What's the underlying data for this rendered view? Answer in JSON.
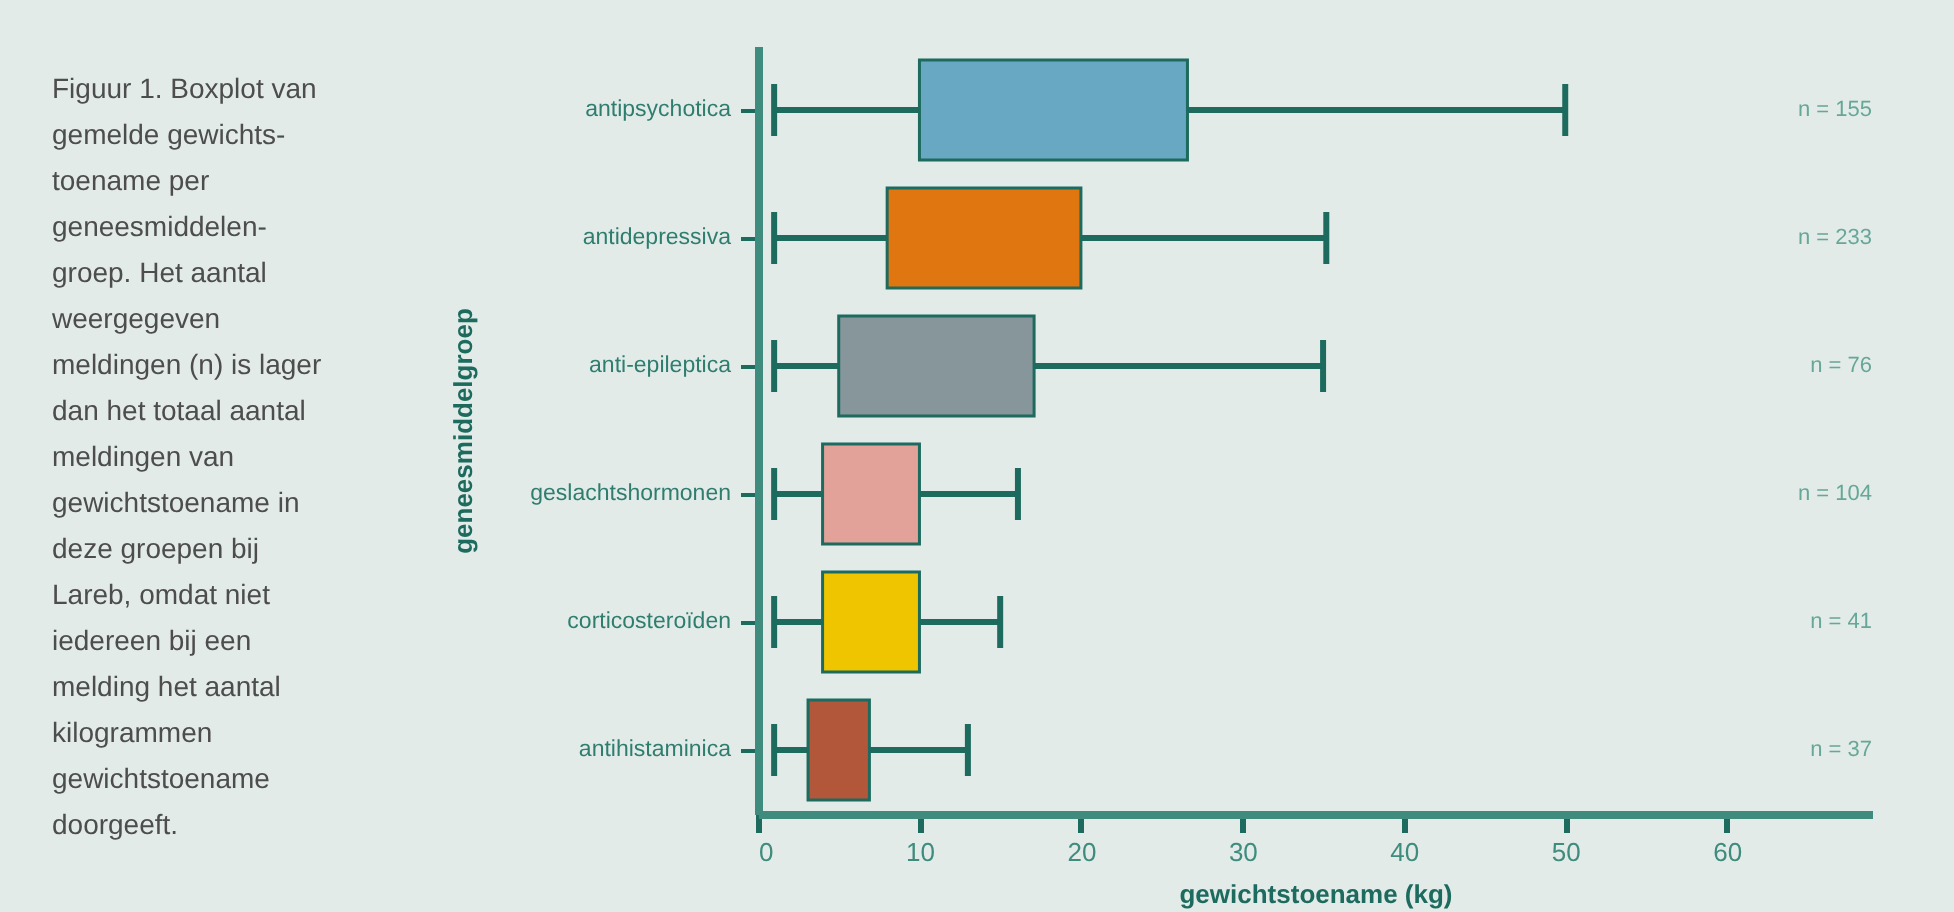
{
  "chart_data": {
    "type": "box",
    "orientation": "horizontal",
    "categories": [
      "antipsychotica",
      "antidepressiva",
      "anti-epileptica",
      "geslachtshormonen",
      "corticosteroïden",
      "antihistaminica"
    ],
    "boxes": [
      {
        "low": 1,
        "q1": 10,
        "q3": 26.6,
        "high": 50
      },
      {
        "low": 1,
        "q1": 8,
        "q3": 20,
        "high": 35.2
      },
      {
        "low": 1,
        "q1": 5,
        "q3": 17.1,
        "high": 35
      },
      {
        "low": 1,
        "q1": 4,
        "q3": 10,
        "high": 16.1
      },
      {
        "low": 1,
        "q1": 4,
        "q3": 10,
        "high": 15
      },
      {
        "low": 1,
        "q1": 3.1,
        "q3": 6.9,
        "high": 13
      }
    ],
    "colors": [
      "#69a8c2",
      "#e0760f",
      "#87969b",
      "#e2a29a",
      "#efc500",
      "#b3573a"
    ],
    "xlim": [
      0,
      69
    ],
    "xticks": [
      0,
      10,
      20,
      30,
      40,
      50,
      60
    ],
    "xlabel": "gewichtstoename (kg)",
    "ylabel": "geneesmiddelgroep",
    "annotations": [
      "Figuur 1. Boxplot van\ngemelde gewichts-\ntoename per\ngeneesmiddelen-\ngroep. Het aantal\nweergegeven\nmeldingen (n) is lager\ndan het totaal aantal\nmeldingen van\ngewichtstoename in\ndeze groepen bij\nLareb, omdat niet\niedereen bij een\nmelding het aantal\nkilogrammen\ngewichtstoename\ndoorgeeft.",
      "n = 155",
      "n = 233",
      "n = 76",
      "n = 104",
      "n = 41",
      "n = 37"
    ]
  }
}
